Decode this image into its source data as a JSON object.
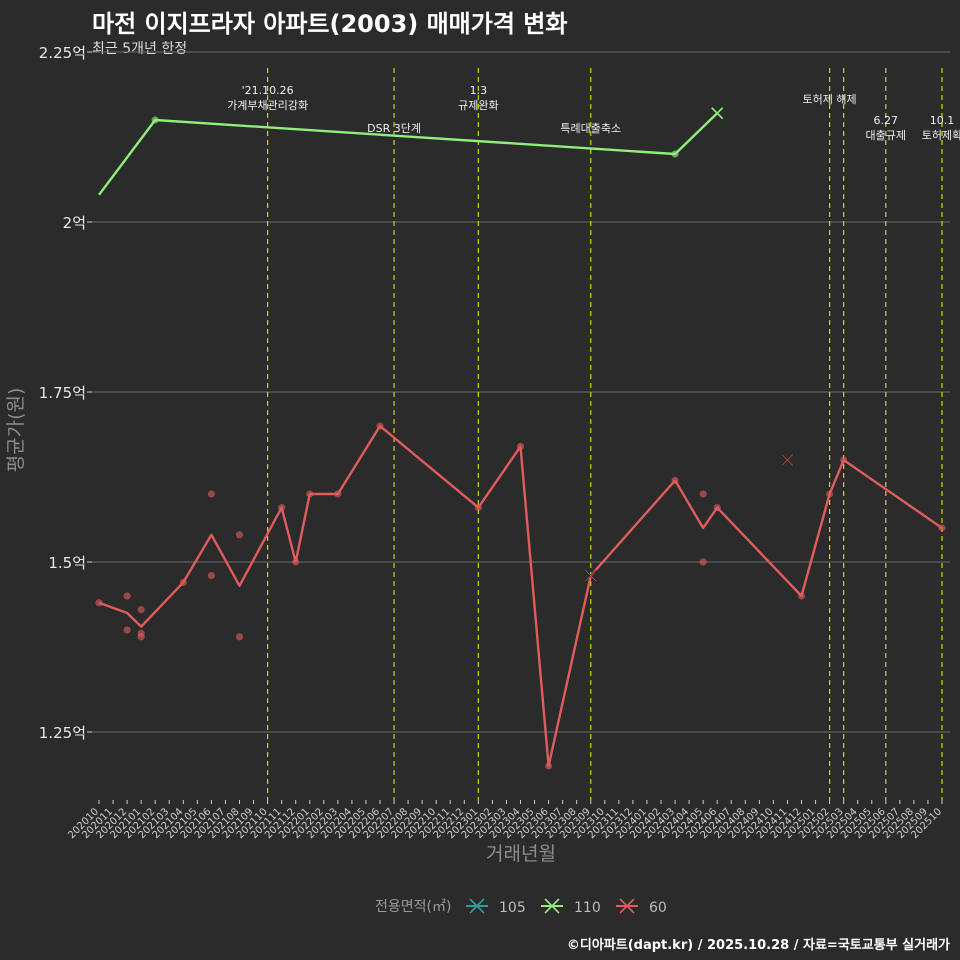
{
  "title": "마전 이지프라자 아파트(2003) 매매가격 변화",
  "subtitle": "최근 5개년 한정",
  "caption": "©디아파트(dapt.kr) / 2025.10.28 / 자료=국토교통부 실거래가",
  "chart_data": {
    "type": "line",
    "title": "마전 이지프라자 아파트(2003) 매매가격 변화",
    "subtitle": "최근 5개년 한정",
    "xlabel": "거래년월",
    "ylabel": "평균가(원)",
    "ylim": [
      1.15,
      2.25
    ],
    "y_ticks": [
      1.25,
      1.5,
      1.75,
      2.0,
      2.25
    ],
    "y_tick_labels": [
      "1.25억",
      "1.5억",
      "1.75억",
      "2억",
      "2.25억"
    ],
    "categories": [
      "202010",
      "202011",
      "202012",
      "202101",
      "202102",
      "202103",
      "202104",
      "202105",
      "202106",
      "202107",
      "202108",
      "202109",
      "202110",
      "202111",
      "202112",
      "202201",
      "202202",
      "202203",
      "202204",
      "202205",
      "202206",
      "202207",
      "202208",
      "202209",
      "202210",
      "202211",
      "202212",
      "202301",
      "202302",
      "202303",
      "202304",
      "202305",
      "202306",
      "202307",
      "202308",
      "202309",
      "202310",
      "202311",
      "202312",
      "202401",
      "202402",
      "202403",
      "202404",
      "202405",
      "202406",
      "202407",
      "202408",
      "202409",
      "202410",
      "202411",
      "202412",
      "202501",
      "202502",
      "202503",
      "202504",
      "202505",
      "202506",
      "202507",
      "202508",
      "202509",
      "202510"
    ],
    "x_tick_labels": [
      "202010",
      "202011",
      "202012",
      "202101",
      "202102",
      "202103",
      "202104",
      "202105",
      "202106",
      "202107",
      "202108",
      "202109",
      "202110",
      "202111",
      "202112",
      "202201",
      "202202",
      "202203",
      "202204",
      "202205",
      "202206",
      "202207",
      "202208",
      "202209",
      "202210",
      "202211",
      "202212",
      "202301",
      "202302",
      "202303",
      "202304",
      "202305",
      "202306",
      "202307",
      "202308",
      "202309",
      "202310",
      "202311",
      "202312",
      "202401",
      "202402",
      "202403",
      "202404",
      "202405",
      "202406",
      "202407",
      "202408",
      "202409",
      "202410",
      "202411",
      "202412",
      "202501",
      "202502",
      "202503",
      "202504",
      "202505",
      "202506",
      "202507",
      "202508",
      "202509",
      "202510"
    ],
    "legend_title": "전용면적(㎡)",
    "series": [
      {
        "name": "105",
        "color": "#2aa198",
        "line": [],
        "points": [],
        "crosses": []
      },
      {
        "name": "110",
        "color": "#90ee7a",
        "line": [
          [
            "202010",
            2.04
          ],
          [
            "202102",
            2.15
          ],
          [
            "202403",
            2.1
          ],
          [
            "202406",
            2.16
          ]
        ],
        "points": [
          [
            "202102",
            2.15
          ],
          [
            "202403",
            2.1
          ]
        ],
        "crosses": [
          [
            "202406",
            2.16
          ]
        ]
      },
      {
        "name": "60",
        "color": "#e05c5c",
        "line": [
          [
            "202010",
            1.44
          ],
          [
            "202012",
            1.425
          ],
          [
            "202101",
            1.405
          ],
          [
            "202104",
            1.47
          ],
          [
            "202106",
            1.54
          ],
          [
            "202108",
            1.465
          ],
          [
            "202111",
            1.58
          ],
          [
            "202112",
            1.5
          ],
          [
            "202201",
            1.6
          ],
          [
            "202203",
            1.6
          ],
          [
            "202206",
            1.7
          ],
          [
            "202301",
            1.58
          ],
          [
            "202304",
            1.67
          ],
          [
            "202306",
            1.2
          ],
          [
            "202309",
            1.48
          ],
          [
            "202403",
            1.62
          ],
          [
            "202405",
            1.55
          ],
          [
            "202406",
            1.58
          ],
          [
            "202412",
            1.45
          ],
          [
            "202502",
            1.6
          ],
          [
            "202503",
            1.65
          ],
          [
            "202510",
            1.55
          ]
        ],
        "points": [
          [
            "202010",
            1.44
          ],
          [
            "202012",
            1.45
          ],
          [
            "202012",
            1.4
          ],
          [
            "202101",
            1.43
          ],
          [
            "202101",
            1.395
          ],
          [
            "202101",
            1.39
          ],
          [
            "202104",
            1.47
          ],
          [
            "202106",
            1.6
          ],
          [
            "202106",
            1.48
          ],
          [
            "202108",
            1.54
          ],
          [
            "202108",
            1.39
          ],
          [
            "202111",
            1.58
          ],
          [
            "202112",
            1.5
          ],
          [
            "202201",
            1.6
          ],
          [
            "202203",
            1.6
          ],
          [
            "202206",
            1.7
          ],
          [
            "202301",
            1.58
          ],
          [
            "202304",
            1.67
          ],
          [
            "202306",
            1.2
          ],
          [
            "202403",
            1.62
          ],
          [
            "202405",
            1.6
          ],
          [
            "202405",
            1.5
          ],
          [
            "202406",
            1.58
          ],
          [
            "202412",
            1.45
          ],
          [
            "202502",
            1.6
          ],
          [
            "202503",
            1.65
          ],
          [
            "202510",
            1.55
          ]
        ],
        "crosses": [
          [
            "202309",
            1.48
          ],
          [
            "202411",
            1.65
          ]
        ]
      }
    ],
    "events": [
      {
        "date": "202110",
        "label_lines": [
          "'21.10.26",
          "가계부채관리강화"
        ],
        "level": 0
      },
      {
        "date": "202207",
        "label_lines": [
          "DSR 3단계"
        ],
        "level": 2
      },
      {
        "date": "202301",
        "label_lines": [
          "1.3",
          "규제완화"
        ],
        "level": 0
      },
      {
        "date": "202309",
        "label_lines": [
          "특례대출축소"
        ],
        "level": 2
      },
      {
        "date": "202502",
        "label_lines": [
          "토허제 해제"
        ],
        "level": 1
      },
      {
        "date": "202503",
        "label_lines": [],
        "level": 1
      },
      {
        "date": "202506",
        "label_lines": [
          "6.27",
          "대출규제"
        ],
        "level": 3
      },
      {
        "date": "202510",
        "label_lines": [
          "10.1",
          "토허제확"
        ],
        "level": 3
      }
    ]
  }
}
